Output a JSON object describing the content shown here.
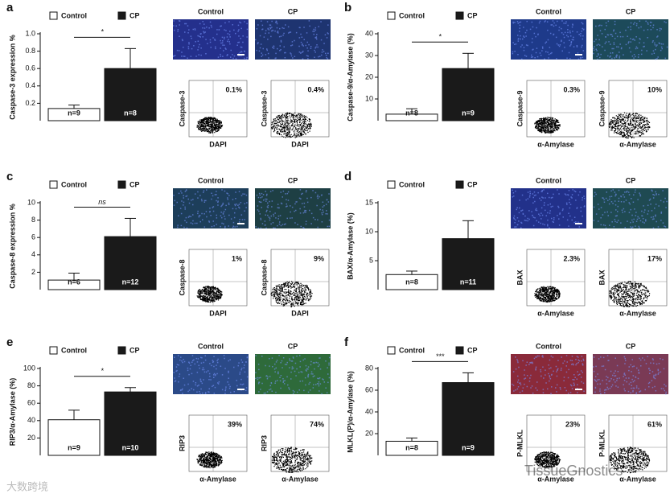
{
  "chart_data": [
    {
      "type": "bar",
      "panel": "a",
      "ylabel": "Caspase-3 expression %",
      "categories": [
        null
      ],
      "ylim": [
        0,
        1
      ],
      "yticks": [
        0.2,
        0.4,
        0.6,
        0.8,
        {
          "value": 1,
          "label": "1.0"
        }
      ],
      "significance": "*",
      "series": [
        {
          "name": "Control",
          "color": "#ffffff",
          "values": [
            0.14
          ],
          "errors": [
            0.04
          ],
          "label": "n=9"
        },
        {
          "name": "CP",
          "color": "#1a1a1a",
          "values": [
            0.6
          ],
          "errors": [
            0.23
          ],
          "label": "n=8"
        }
      ],
      "insets": [
        {
          "title": "Control",
          "ylabel": "Caspase-3",
          "xlabel": "DAPI",
          "percent": "0.1%",
          "tint": "#24308c"
        },
        {
          "title": "CP",
          "ylabel": "Caspase-3",
          "xlabel": "DAPI",
          "percent": "0.4%",
          "tint": "#1e3470"
        }
      ]
    },
    {
      "type": "bar",
      "panel": "b",
      "ylabel": "Caspase-9/α-Amylase (%)",
      "categories": [
        null
      ],
      "ylim": [
        0,
        40
      ],
      "yticks": [
        10,
        20,
        30,
        40
      ],
      "significance": "*",
      "series": [
        {
          "name": "Control",
          "color": "#ffffff",
          "values": [
            3
          ],
          "errors": [
            2.5
          ],
          "label": "n=8"
        },
        {
          "name": "CP",
          "color": "#1a1a1a",
          "values": [
            24
          ],
          "errors": [
            7
          ],
          "label": "n=9"
        }
      ],
      "insets": [
        {
          "title": "Control",
          "ylabel": "Caspase-9",
          "xlabel": "α-Amylase",
          "percent": "0.3%",
          "tint": "#1e3a8a"
        },
        {
          "title": "CP",
          "ylabel": "Caspase-9",
          "xlabel": "α-Amylase",
          "percent": "10%",
          "tint": "#1d4a5a"
        }
      ]
    },
    {
      "type": "bar",
      "panel": "c",
      "ylabel": "Caspase-8 expression %",
      "categories": [
        null
      ],
      "ylim": [
        0,
        10
      ],
      "yticks": [
        2,
        4,
        6,
        8,
        10
      ],
      "significance": "ns",
      "series": [
        {
          "name": "Control",
          "color": "#ffffff",
          "values": [
            1.1
          ],
          "errors": [
            0.8
          ],
          "label": "n=6"
        },
        {
          "name": "CP",
          "color": "#1a1a1a",
          "values": [
            6.1
          ],
          "errors": [
            2.1
          ],
          "label": "n=12"
        }
      ],
      "insets": [
        {
          "title": "Control",
          "ylabel": "Caspase-8",
          "xlabel": "DAPI",
          "percent": "1%",
          "tint": "#1d3e5a"
        },
        {
          "title": "CP",
          "ylabel": "Caspase-8",
          "xlabel": "DAPI",
          "percent": "9%",
          "tint": "#1e3f44"
        }
      ]
    },
    {
      "type": "bar",
      "panel": "d",
      "ylabel": "BAX/α-Amylase (%)",
      "categories": [
        null
      ],
      "ylim": [
        0,
        15
      ],
      "yticks": [
        5,
        10,
        15
      ],
      "significance": null,
      "series": [
        {
          "name": "Control",
          "color": "#ffffff",
          "values": [
            2.6
          ],
          "errors": [
            0.6
          ],
          "label": "n=8"
        },
        {
          "name": "CP",
          "color": "#1a1a1a",
          "values": [
            8.8
          ],
          "errors": [
            3.1
          ],
          "label": "n=11"
        }
      ],
      "insets": [
        {
          "title": "Control",
          "ylabel": "BAX",
          "xlabel": "α-Amylase",
          "percent": "2.3%",
          "tint": "#22318a"
        },
        {
          "title": "CP",
          "ylabel": "BAX",
          "xlabel": "α-Amylase",
          "percent": "17%",
          "tint": "#1f4a52"
        }
      ]
    },
    {
      "type": "bar",
      "panel": "e",
      "ylabel": "RIP3/α-Amylase (%)",
      "categories": [
        null
      ],
      "ylim": [
        0,
        100
      ],
      "yticks": [
        20,
        40,
        60,
        80,
        100
      ],
      "significance": "*",
      "series": [
        {
          "name": "Control",
          "color": "#ffffff",
          "values": [
            41
          ],
          "errors": [
            11
          ],
          "label": "n=9"
        },
        {
          "name": "CP",
          "color": "#1a1a1a",
          "values": [
            73
          ],
          "errors": [
            5
          ],
          "label": "n=10"
        }
      ],
      "insets": [
        {
          "title": "Control",
          "ylabel": "RIP3",
          "xlabel": "α-Amylase",
          "percent": "39%",
          "tint": "#2b4a88"
        },
        {
          "title": "CP",
          "ylabel": "RIP3",
          "xlabel": "α-Amylase",
          "percent": "74%",
          "tint": "#2e6a3a"
        }
      ]
    },
    {
      "type": "bar",
      "panel": "f",
      "ylabel": "MLKL(P)/α-Amylase (%)",
      "categories": [
        null
      ],
      "ylim": [
        0,
        80
      ],
      "yticks": [
        20,
        40,
        60,
        80
      ],
      "significance": "***",
      "series": [
        {
          "name": "Control",
          "color": "#ffffff",
          "values": [
            13
          ],
          "errors": [
            3
          ],
          "label": "n=8"
        },
        {
          "name": "CP",
          "color": "#1a1a1a",
          "values": [
            67
          ],
          "errors": [
            9
          ],
          "label": "n=9"
        }
      ],
      "insets": [
        {
          "title": "Control",
          "ylabel": "P-MLKL",
          "xlabel": "α-Amylase",
          "percent": "23%",
          "tint": "#8a2a3a"
        },
        {
          "title": "CP",
          "ylabel": "P-MLKL",
          "xlabel": "α-Amylase",
          "percent": "61%",
          "tint": "#7a3a55"
        }
      ]
    }
  ],
  "watermarks": [
    "大数跨境",
    "TissueGnostics"
  ]
}
